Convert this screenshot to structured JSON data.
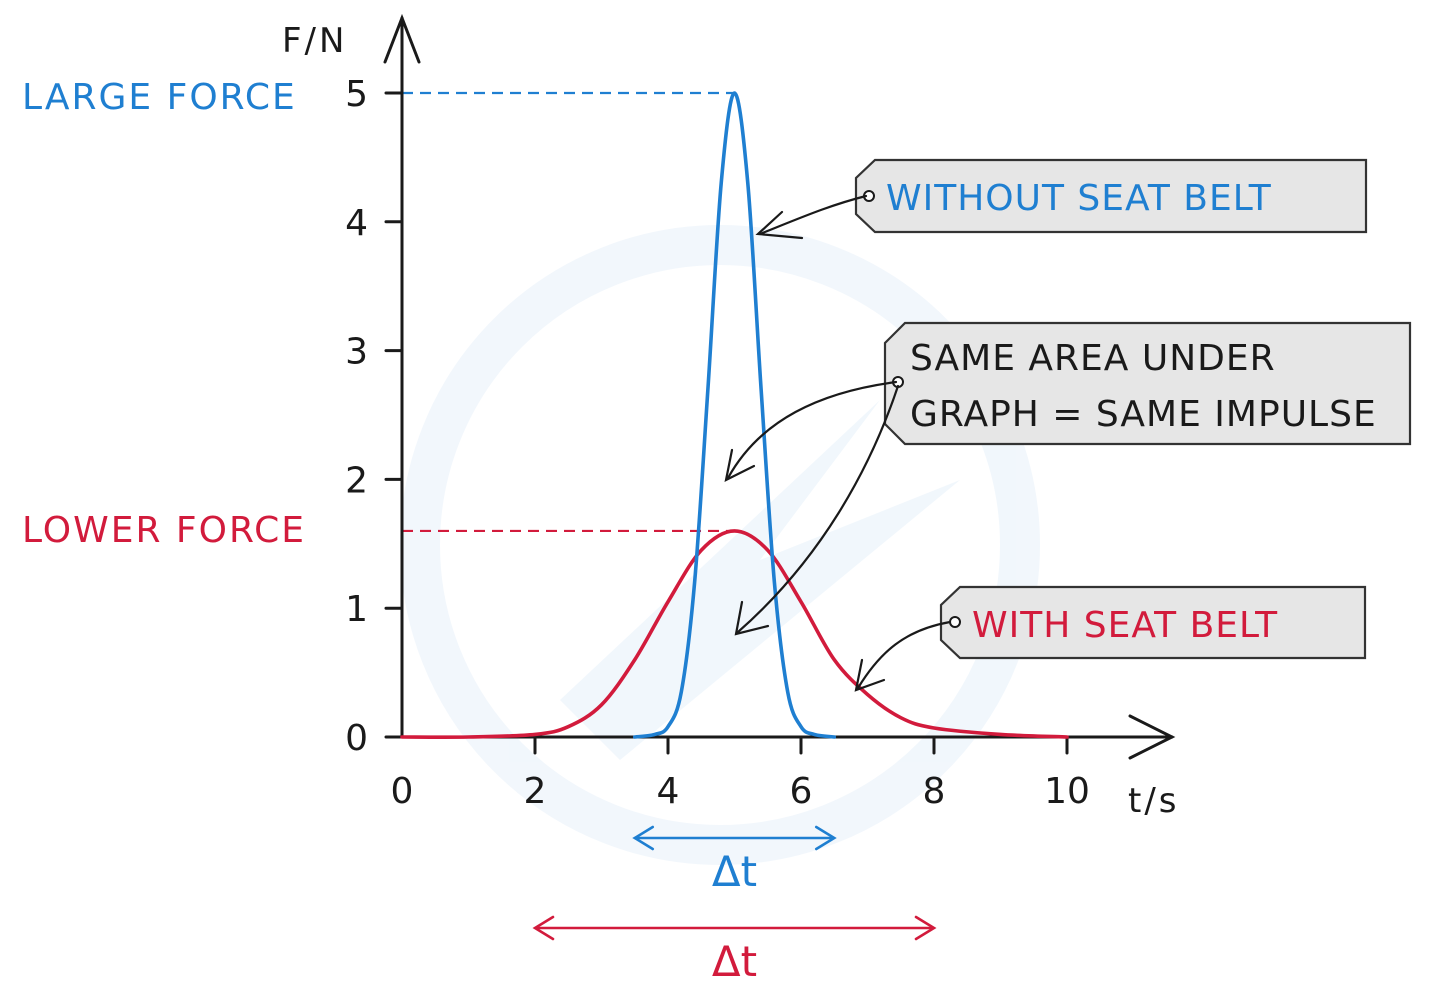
{
  "chart_data": {
    "type": "line",
    "xlabel": "t/s",
    "ylabel": "F/N",
    "xlim": [
      0,
      10
    ],
    "ylim": [
      0,
      5
    ],
    "x_ticks": [
      "0",
      "2",
      "4",
      "6",
      "8",
      "10"
    ],
    "y_ticks": [
      "0",
      "1",
      "2",
      "3",
      "4",
      "5"
    ],
    "grid": false,
    "series": [
      {
        "color": "#1f7fd1",
        "x": [
          3.5,
          3.8,
          4.0,
          4.2,
          4.4,
          4.6,
          4.8,
          5.0,
          5.2,
          5.4,
          5.6,
          5.8,
          6.0,
          6.2,
          6.5
        ],
        "y": [
          0.0,
          0.02,
          0.08,
          0.35,
          1.2,
          2.7,
          4.3,
          5.0,
          4.3,
          2.7,
          1.2,
          0.35,
          0.08,
          0.02,
          0.0
        ]
      },
      {
        "color": "#d21b3c",
        "x": [
          0,
          1,
          2,
          2.5,
          3,
          3.5,
          4,
          4.5,
          5,
          5.5,
          6,
          6.5,
          7,
          7.5,
          8,
          9,
          10
        ],
        "y": [
          0.0,
          0.0,
          0.02,
          0.08,
          0.25,
          0.6,
          1.05,
          1.45,
          1.6,
          1.45,
          1.05,
          0.6,
          0.33,
          0.15,
          0.07,
          0.02,
          0.0
        ]
      }
    ],
    "reference_lines": [
      {
        "label": "LARGE FORCE",
        "y": 5.0,
        "color": "#1f7fd1"
      },
      {
        "label": "LOWER FORCE",
        "y": 1.6,
        "color": "#d21b3c"
      }
    ],
    "annotations": {
      "without_belt": "WITHOUT  SEAT  BELT",
      "same_area_line1": "SAME  AREA  UNDER",
      "same_area_line2": "GRAPH = SAME  IMPULSE",
      "with_belt": "WITH  SEAT  BELT"
    },
    "intervals": [
      {
        "label": "Δt",
        "from": 3.5,
        "to": 6.5,
        "color": "#1f7fd1"
      },
      {
        "label": "Δt",
        "from": 2.0,
        "to": 8.0,
        "color": "#d21b3c"
      }
    ]
  }
}
